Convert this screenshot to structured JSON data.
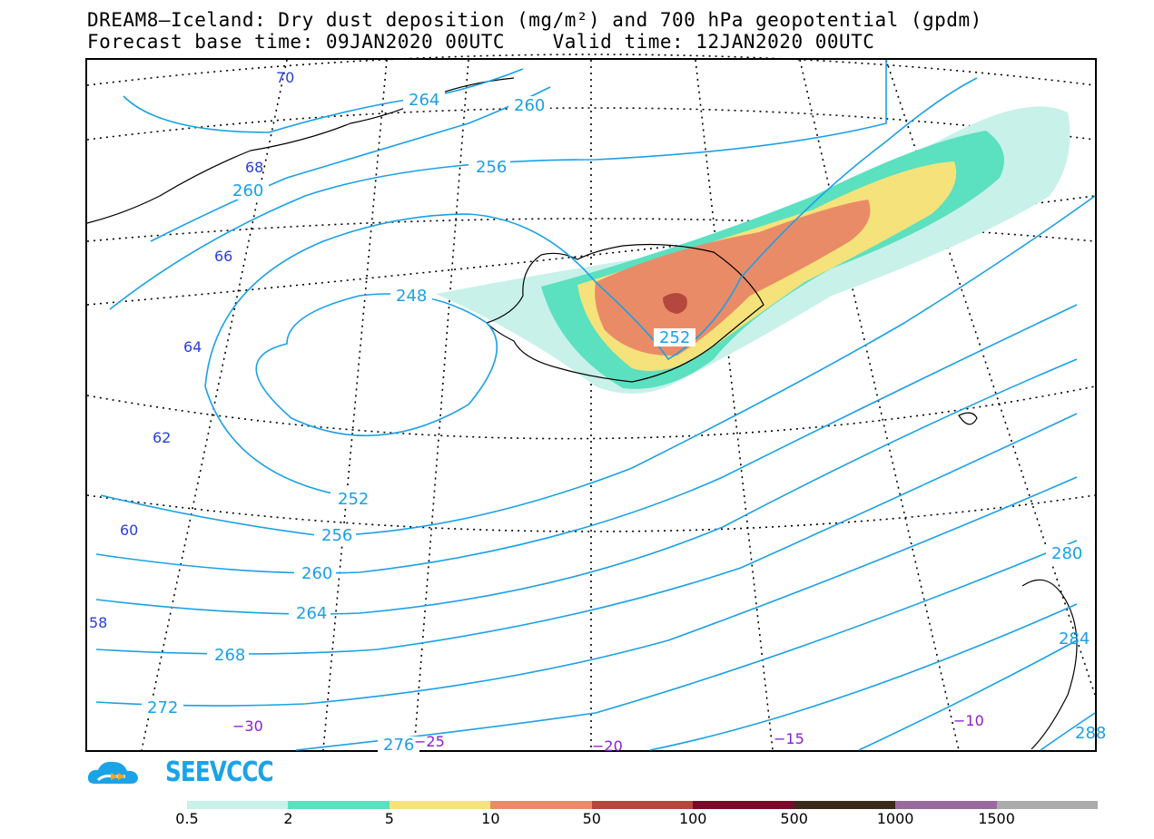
{
  "title_line1": "DREAM8—Iceland: Dry dust deposition (mg/m²) and 700 hPa geopotential (gpdm)",
  "title_line2": "Forecast base time: 09JAN2020 00UTC    Valid time: 12JAN2020 00UTC",
  "contours": [
    {
      "label": "268",
      "color": "#1aa0e6"
    },
    {
      "label": "264",
      "color": "#1aa0e6"
    },
    {
      "label": "260",
      "color": "#1aa0e6"
    },
    {
      "label": "256",
      "color": "#1aa0e6"
    },
    {
      "label": "252",
      "color": "#1aa0e6"
    },
    {
      "label": "248",
      "color": "#1aa0e6"
    },
    {
      "label": "272",
      "color": "#1aa0e6"
    },
    {
      "label": "276",
      "color": "#1aa0e6"
    },
    {
      "label": "280",
      "color": "#1aa0e6"
    },
    {
      "label": "284",
      "color": "#1aa0e6"
    },
    {
      "label": "288",
      "color": "#1aa0e6"
    }
  ],
  "latitude_labels": [
    "70",
    "68",
    "66",
    "64",
    "62",
    "60",
    "58"
  ],
  "longitude_labels": [
    "−30",
    "−25",
    "−20",
    "−15",
    "−10"
  ],
  "logo_text": "SEEVCCC",
  "legend": {
    "colors": [
      "#c8f1ea",
      "#5be0c0",
      "#f6e27a",
      "#ea8b68",
      "#b4483f",
      "#7a0a2a",
      "#3a2a18",
      "#9a6a9e",
      "#ababab"
    ],
    "labels": [
      "0.5",
      "2",
      "5",
      "10",
      "50",
      "100",
      "500",
      "1000",
      "1500"
    ]
  }
}
